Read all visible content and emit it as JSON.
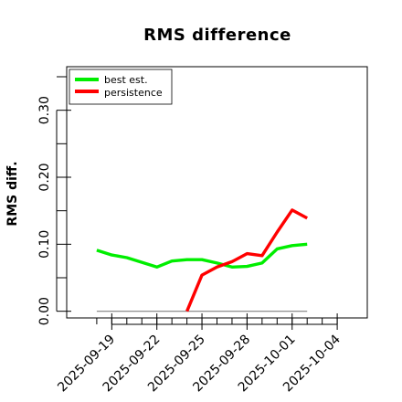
{
  "chart_data": {
    "type": "line",
    "title": "RMS difference",
    "xlabel": "",
    "ylabel": "RMS diff.",
    "ylim": [
      -0.01,
      0.365
    ],
    "y_ticks": [
      0.0,
      0.1,
      0.2,
      0.3
    ],
    "y_tick_labels": [
      "0.00",
      "0.10",
      "0.20",
      "0.30"
    ],
    "xlim": [
      "2025-09-16",
      "2025-10-06"
    ],
    "x_ticks": [
      "2025-09-19",
      "2025-09-22",
      "2025-09-25",
      "2025-09-28",
      "2025-10-01",
      "2025-10-04"
    ],
    "x_tick_labels": [
      "2025-09-19",
      "2025-09-22",
      "2025-09-25",
      "2025-09-28",
      "2025-10-01",
      "2025-10-04"
    ],
    "grid": false,
    "legend_position": "top-left",
    "series": [
      {
        "name": "best est.",
        "color": "#00ee00",
        "points": [
          [
            "2025-09-18",
            0.091
          ],
          [
            "2025-09-19",
            0.084
          ],
          [
            "2025-09-20",
            0.08
          ],
          [
            "2025-09-21",
            0.073
          ],
          [
            "2025-09-22",
            0.066
          ],
          [
            "2025-09-23",
            0.075
          ],
          [
            "2025-09-24",
            0.077
          ],
          [
            "2025-09-25",
            0.077
          ],
          [
            "2025-09-26",
            0.072
          ],
          [
            "2025-09-27",
            0.066
          ],
          [
            "2025-09-28",
            0.067
          ],
          [
            "2025-09-29",
            0.072
          ],
          [
            "2025-09-30",
            0.093
          ],
          [
            "2025-10-01",
            0.098
          ],
          [
            "2025-10-02",
            0.1
          ]
        ]
      },
      {
        "name": "persistence",
        "color": "#ff0000",
        "points": [
          [
            "2025-09-24",
            0.0
          ],
          [
            "2025-09-25",
            0.054
          ],
          [
            "2025-09-26",
            0.066
          ],
          [
            "2025-09-27",
            0.074
          ],
          [
            "2025-09-28",
            0.086
          ],
          [
            "2025-09-29",
            0.083
          ],
          [
            "2025-09-30",
            0.118
          ],
          [
            "2025-10-01",
            0.151
          ],
          [
            "2025-10-02",
            0.139
          ]
        ]
      }
    ],
    "reference_line": {
      "y": 0.0,
      "x_from": "2025-09-18",
      "x_to": "2025-10-02",
      "color": "#808080"
    }
  }
}
